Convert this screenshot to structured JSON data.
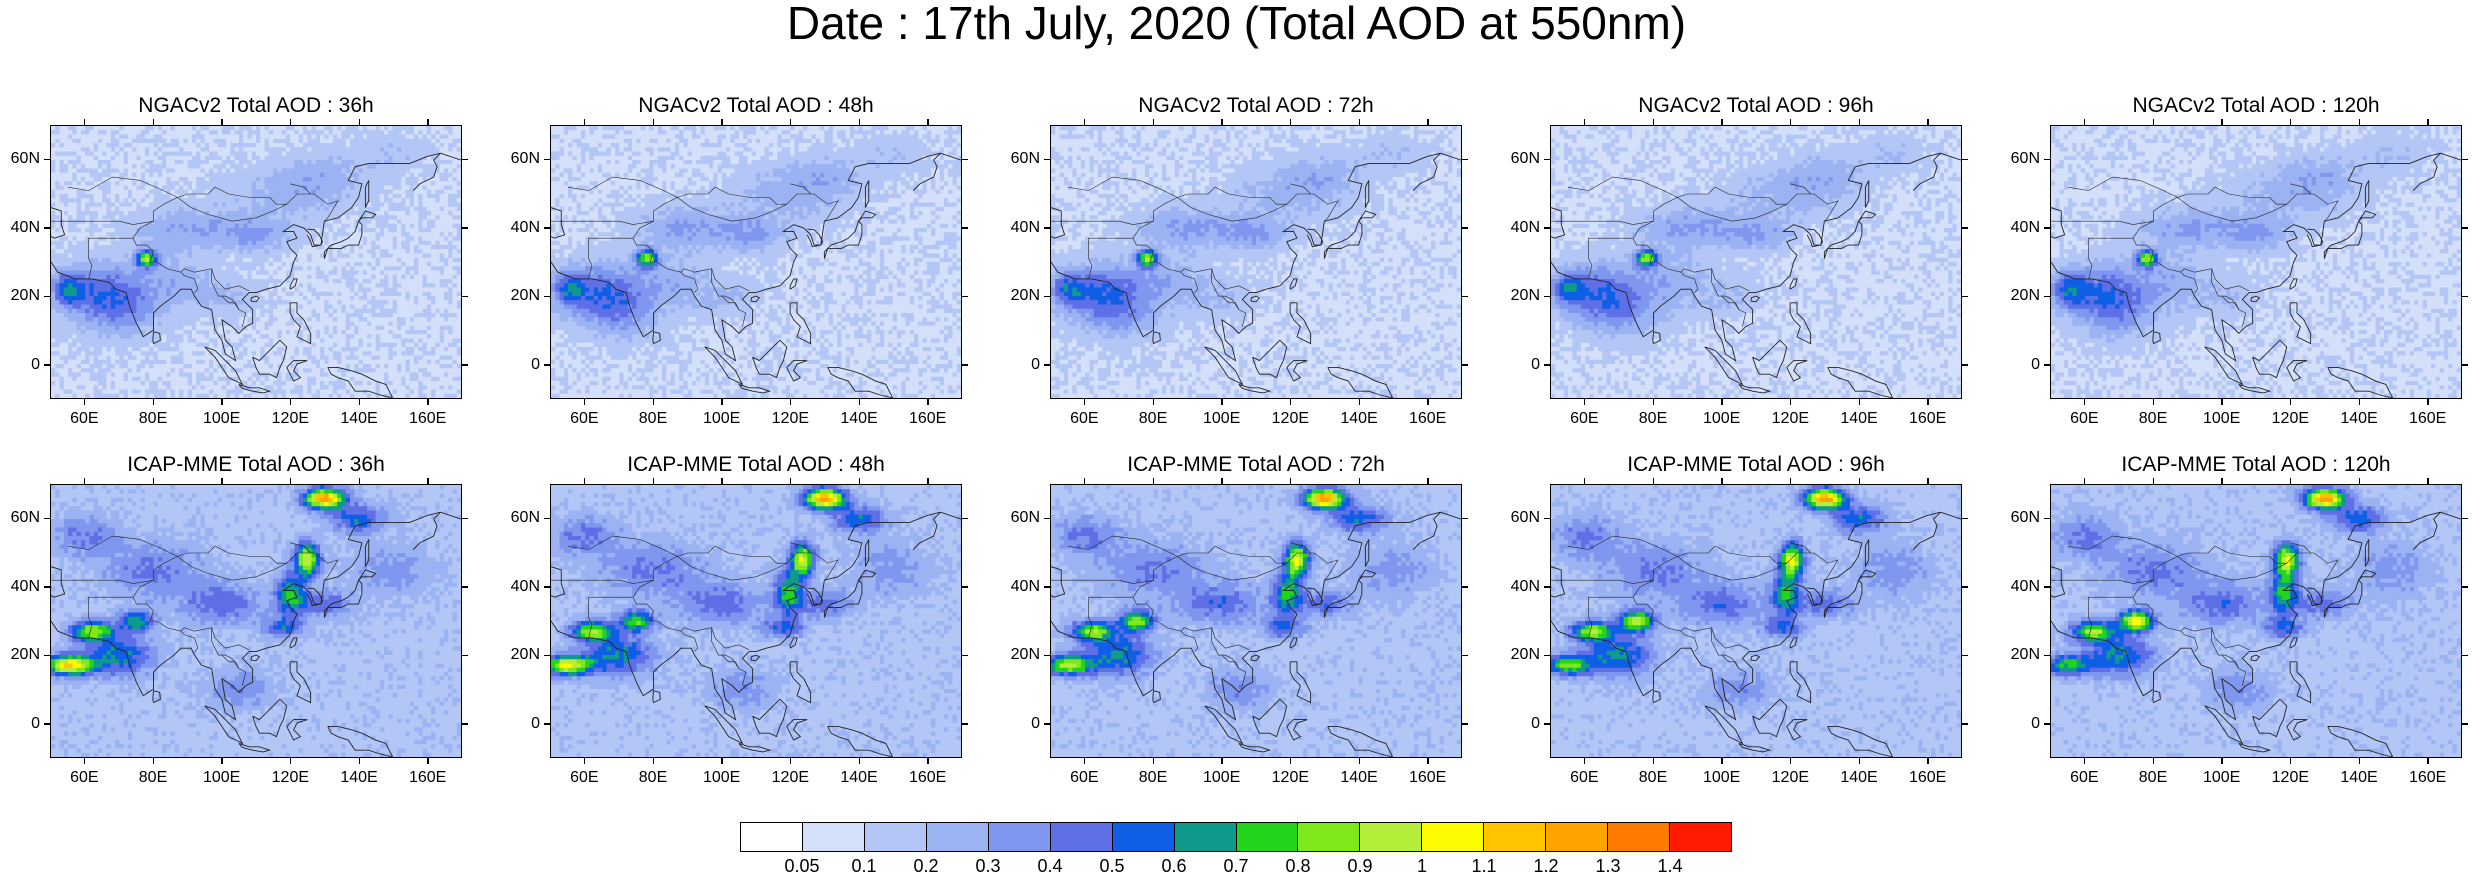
{
  "title": "Date : 17th July, 2020 (Total AOD at 550nm)",
  "axes": {
    "lat_ticks": [
      "0",
      "20N",
      "40N",
      "60N"
    ],
    "lon_ticks": [
      "60E",
      "80E",
      "100E",
      "120E",
      "140E",
      "160E"
    ],
    "lat_values": [
      0,
      20,
      40,
      60
    ],
    "lon_values": [
      60,
      80,
      100,
      120,
      140,
      160
    ],
    "lon_range": [
      50,
      170
    ],
    "lat_range": [
      -10,
      70
    ]
  },
  "panels": [
    {
      "title": "NGACv2 Total AOD : 36h",
      "model": "ngac"
    },
    {
      "title": "NGACv2 Total AOD : 48h",
      "model": "ngac"
    },
    {
      "title": "NGACv2 Total AOD : 72h",
      "model": "ngac"
    },
    {
      "title": "NGACv2 Total AOD : 96h",
      "model": "ngac"
    },
    {
      "title": "NGACv2 Total AOD : 120h",
      "model": "ngac"
    },
    {
      "title": "ICAP-MME Total AOD : 36h",
      "model": "icap"
    },
    {
      "title": "ICAP-MME Total AOD : 48h",
      "model": "icap"
    },
    {
      "title": "ICAP-MME Total AOD : 72h",
      "model": "icap"
    },
    {
      "title": "ICAP-MME Total AOD : 96h",
      "model": "icap"
    },
    {
      "title": "ICAP-MME Total AOD : 120h",
      "model": "icap"
    }
  ],
  "colorbar": {
    "labels": [
      "0.05",
      "0.1",
      "0.2",
      "0.3",
      "0.4",
      "0.5",
      "0.6",
      "0.7",
      "0.8",
      "0.9",
      "1",
      "1.1",
      "1.2",
      "1.3",
      "1.4"
    ],
    "colors": [
      "#ffffff",
      "#d4e0fa",
      "#b3c6f5",
      "#9bb3f2",
      "#7f97ee",
      "#5f6fe6",
      "#0f5fe6",
      "#0f9a8c",
      "#22d41c",
      "#7fe81a",
      "#b4ee3a",
      "#fffb00",
      "#ffc400",
      "#ffa300",
      "#ff7a00",
      "#ff1a00"
    ]
  }
}
